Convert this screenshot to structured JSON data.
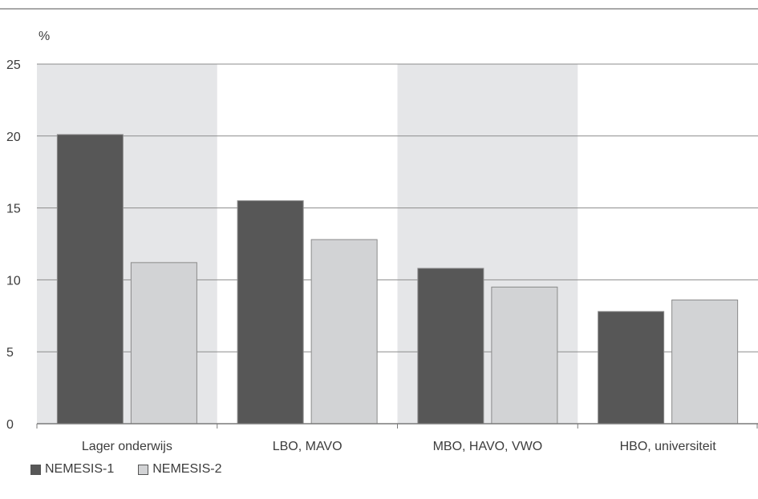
{
  "chart_data": {
    "type": "bar",
    "ylabel": "%",
    "ylim": [
      0,
      25
    ],
    "yticks": [
      0,
      5,
      10,
      15,
      20,
      25
    ],
    "grid": true,
    "legend_position": "bottom-left",
    "categories": [
      "Lager onderwijs",
      "LBO, MAVO",
      "MBO, HAVO, VWO",
      "HBO, universiteit"
    ],
    "series": [
      {
        "name": "NEMESIS-1",
        "values": [
          20.1,
          15.5,
          10.8,
          7.8
        ]
      },
      {
        "name": "NEMESIS-2",
        "values": [
          11.2,
          12.8,
          9.5,
          8.6
        ]
      }
    ]
  },
  "colors": {
    "series1": "#575757",
    "series2": "#d2d3d5",
    "band": "#e5e6e8",
    "grid": "#8c8c8c"
  }
}
